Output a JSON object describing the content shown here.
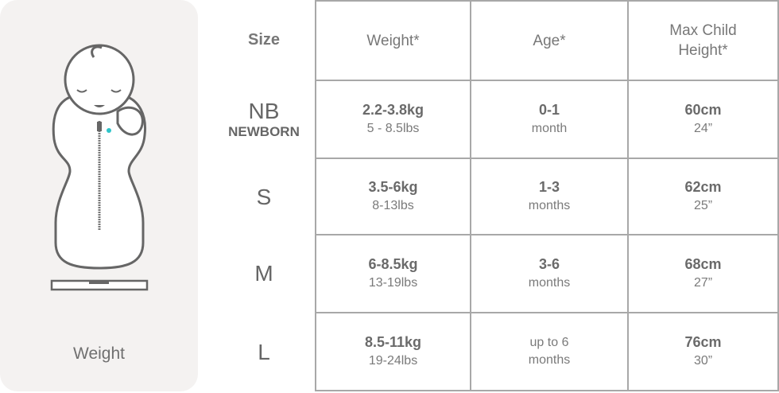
{
  "illustration": {
    "label": "Weight",
    "accent_color": "#2fc4c9",
    "line_color": "#666666"
  },
  "table": {
    "headers": {
      "size": "Size",
      "weight": "Weight*",
      "age": "Age*",
      "height_line1": "Max Child",
      "height_line2": "Height*"
    },
    "rows": [
      {
        "size": "NB",
        "size_sub": "NEWBORN",
        "kg": "2.2-3.8kg",
        "lbs": "5 - 8.5lbs",
        "age1": "0-1",
        "age2": "month",
        "cm": "60cm",
        "in": "24”"
      },
      {
        "size": "S",
        "size_sub": "",
        "kg": "3.5-6kg",
        "lbs": "8-13lbs",
        "age1": "1-3",
        "age2": "months",
        "cm": "62cm",
        "in": "25”"
      },
      {
        "size": "M",
        "size_sub": "",
        "kg": "6-8.5kg",
        "lbs": "13-19lbs",
        "age1": "3-6",
        "age2": "months",
        "cm": "68cm",
        "in": "27”"
      },
      {
        "size": "L",
        "size_sub": "",
        "kg": "8.5-11kg",
        "lbs": "19-24lbs",
        "age1": "up to 6",
        "age2": "months",
        "cm": "76cm",
        "in": "30”"
      }
    ]
  }
}
